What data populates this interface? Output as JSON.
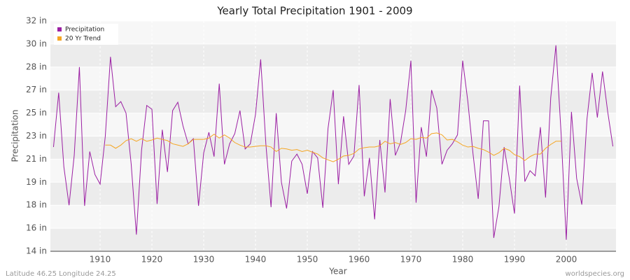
{
  "chart_data": {
    "type": "line",
    "title": "Yearly Total Precipitation 1901 - 2009",
    "x_label": "Year",
    "y_label": "Precipitation",
    "footer_left": "Latitude 46.25 Longitude 24.25",
    "footer_right": "worldspecies.org",
    "legend": "top-left",
    "grid": true,
    "xlim": [
      1900.4,
      2009.6
    ],
    "xticks": [
      1910,
      1920,
      1930,
      1940,
      1950,
      1960,
      1970,
      1980,
      1990,
      2000
    ],
    "ylim": [
      14,
      32
    ],
    "yticks": [
      {
        "value": 14,
        "label": "14 in"
      },
      {
        "value": 15.8,
        "label": "16 in"
      },
      {
        "value": 17.6,
        "label": "18 in"
      },
      {
        "value": 19.4,
        "label": "19 in"
      },
      {
        "value": 21.2,
        "label": "21 in"
      },
      {
        "value": 23,
        "label": "23 in"
      },
      {
        "value": 24.8,
        "label": "25 in"
      },
      {
        "value": 26.6,
        "label": "27 in"
      },
      {
        "value": 28.4,
        "label": "28 in"
      },
      {
        "value": 30.2,
        "label": "30 in"
      },
      {
        "value": 32,
        "label": "32 in"
      }
    ],
    "x": [
      1901,
      1902,
      1903,
      1904,
      1905,
      1906,
      1907,
      1908,
      1909,
      1910,
      1911,
      1912,
      1913,
      1914,
      1915,
      1916,
      1917,
      1918,
      1919,
      1920,
      1921,
      1922,
      1923,
      1924,
      1925,
      1926,
      1927,
      1928,
      1929,
      1930,
      1931,
      1932,
      1933,
      1934,
      1935,
      1936,
      1937,
      1938,
      1939,
      1940,
      1941,
      1942,
      1943,
      1944,
      1945,
      1946,
      1947,
      1948,
      1949,
      1950,
      1951,
      1952,
      1953,
      1954,
      1955,
      1956,
      1957,
      1958,
      1959,
      1960,
      1961,
      1962,
      1963,
      1964,
      1965,
      1966,
      1967,
      1968,
      1969,
      1970,
      1971,
      1972,
      1973,
      1974,
      1975,
      1976,
      1977,
      1978,
      1979,
      1980,
      1981,
      1982,
      1983,
      1984,
      1985,
      1986,
      1987,
      1988,
      1989,
      1990,
      1991,
      1992,
      1993,
      1994,
      1995,
      1996,
      1997,
      1998,
      1999,
      2000,
      2001,
      2002,
      2003,
      2004,
      2005,
      2006,
      2007,
      2008,
      2009
    ],
    "series": [
      {
        "name": "Precipitation",
        "color": "#9b1fa3",
        "values": [
          22.15,
          26.4,
          20.6,
          17.6,
          21.5,
          28.4,
          17.55,
          21.8,
          20,
          19.25,
          23,
          29.2,
          25.3,
          25.7,
          24.8,
          20.8,
          15.3,
          21.9,
          25.4,
          25.1,
          17.7,
          23.5,
          20.2,
          25,
          25.65,
          23.8,
          22.4,
          22.8,
          17.55,
          21.7,
          23.3,
          21.4,
          27.1,
          20.8,
          22.4,
          23.2,
          25,
          22,
          22.4,
          24.7,
          29,
          22.4,
          17.45,
          24.8,
          19.4,
          17.35,
          21.05,
          21.6,
          20.8,
          18.5,
          21.8,
          21.3,
          17.4,
          23.6,
          26.6,
          19.25,
          24.55,
          20.8,
          21.45,
          27,
          18.3,
          21.3,
          16.5,
          22.7,
          18.6,
          25.9,
          21.5,
          22.5,
          25,
          28.9,
          17.8,
          23.7,
          21.4,
          26.6,
          25.2,
          20.8,
          21.9,
          22.4,
          23.1,
          28.9,
          25.7,
          21.6,
          18.1,
          24.2,
          24.2,
          15.05,
          17.5,
          22.15,
          19.7,
          16.95,
          26.95,
          19.45,
          20.3,
          19.9,
          23.7,
          18.2,
          26,
          30.1,
          23.2,
          14.9,
          24.9,
          19.7,
          17.65,
          24.35,
          27.95,
          24.45,
          28.05,
          24.9,
          22.2
        ]
      },
      {
        "name": "20 Yr Trend",
        "color": "#f5a623",
        "values": [
          null,
          null,
          null,
          null,
          null,
          null,
          null,
          null,
          null,
          null,
          22.3,
          22.3,
          22.05,
          22.3,
          22.65,
          22.8,
          22.6,
          22.8,
          22.6,
          22.7,
          22.85,
          22.75,
          22.65,
          22.4,
          22.3,
          22.2,
          22.4,
          22.75,
          22.75,
          22.75,
          22.85,
          23.15,
          22.85,
          23.1,
          22.85,
          22.5,
          22.3,
          22.15,
          22.15,
          22.2,
          22.25,
          22.25,
          22.15,
          21.8,
          22.05,
          22,
          21.9,
          21.95,
          21.8,
          21.9,
          21.75,
          21.6,
          21.3,
          21.15,
          21,
          21.2,
          21.45,
          21.5,
          21.65,
          22,
          22.1,
          22.15,
          22.15,
          22.25,
          22.6,
          22.4,
          22.5,
          22.35,
          22.5,
          22.8,
          22.75,
          22.9,
          22.85,
          23.2,
          23.25,
          23.1,
          22.7,
          22.75,
          22.55,
          22.3,
          22.15,
          22.2,
          22.05,
          21.95,
          21.75,
          21.5,
          21.7,
          22.05,
          21.9,
          21.55,
          21.4,
          21.1,
          21.4,
          21.6,
          21.6,
          22.05,
          22.35,
          22.6,
          22.6,
          null,
          null,
          null,
          null,
          null,
          null,
          null,
          null,
          null,
          null
        ]
      }
    ]
  }
}
